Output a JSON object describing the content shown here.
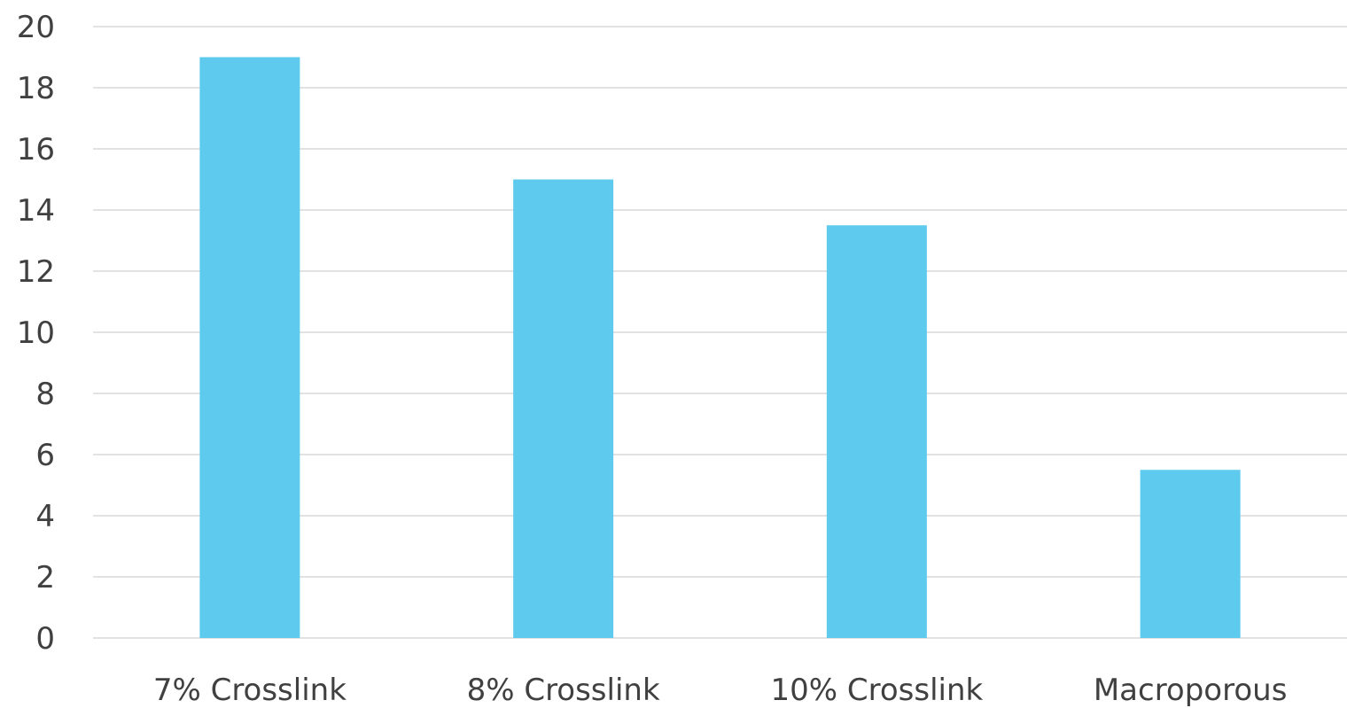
{
  "chart_data": {
    "type": "bar",
    "categories": [
      "7% Crosslink",
      "8% Crosslink",
      "10% Crosslink",
      "Macroporous"
    ],
    "values": [
      19,
      15,
      13.5,
      5.5
    ],
    "ylim": [
      0,
      20
    ],
    "yticks": [
      0,
      2,
      4,
      6,
      8,
      10,
      12,
      14,
      16,
      18,
      20
    ],
    "grid": true,
    "legend": "none",
    "bar_color": "#5ecbee",
    "grid_color": "#d9d9d9",
    "text_color": "#404040"
  }
}
